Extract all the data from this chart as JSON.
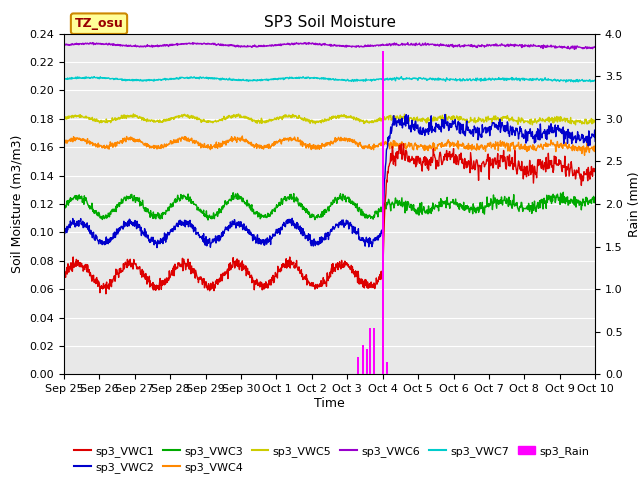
{
  "title": "SP3 Soil Moisture",
  "ylabel_left": "Soil Moisture (m3/m3)",
  "ylabel_right": "Rain (mm)",
  "xlabel": "Time",
  "ylim_left": [
    0.0,
    0.24
  ],
  "ylim_right": [
    0.0,
    4.0
  ],
  "yticks_left": [
    0.0,
    0.02,
    0.04,
    0.06,
    0.08,
    0.1,
    0.12,
    0.14,
    0.16,
    0.18,
    0.2,
    0.22,
    0.24
  ],
  "yticks_right": [
    0.0,
    0.5,
    1.0,
    1.5,
    2.0,
    2.5,
    3.0,
    3.5,
    4.0
  ],
  "background_color": "#e8e8e8",
  "grid_color": "#ffffff",
  "fig_bg": "#ffffff",
  "title_fontsize": 11,
  "label_fontsize": 9,
  "tick_fontsize": 8,
  "legend_fontsize": 8,
  "tz_label": "TZ_osu",
  "tz_bg": "#ffff99",
  "tz_border": "#cc8800",
  "series": {
    "sp3_VWC1": {
      "color": "#dd0000",
      "base": 0.07,
      "amplitude": 0.008,
      "period": 1.5,
      "post_jump": 0.08,
      "post_peak": 0.155,
      "post_end": 0.143,
      "noise": 0.006
    },
    "sp3_VWC2": {
      "color": "#0000cc",
      "base": 0.1,
      "amplitude": 0.007,
      "period": 1.5,
      "post_jump": 0.1,
      "post_peak": 0.177,
      "post_end": 0.168,
      "noise": 0.005
    },
    "sp3_VWC3": {
      "color": "#00aa00",
      "base": 0.118,
      "amplitude": 0.007,
      "period": 1.5,
      "post_jump": 0.118,
      "post_peak": 0.118,
      "post_end": 0.137,
      "noise": 0.004
    },
    "sp3_VWC4": {
      "color": "#ff8800",
      "base": 0.163,
      "amplitude": 0.003,
      "period": 1.5,
      "post_jump": 0.163,
      "post_peak": 0.161,
      "post_end": 0.158,
      "noise": 0.003
    },
    "sp3_VWC5": {
      "color": "#cccc00",
      "base": 0.18,
      "amplitude": 0.002,
      "period": 1.5,
      "post_jump": 0.18,
      "post_peak": 0.18,
      "post_end": 0.174,
      "noise": 0.002
    },
    "sp3_VWC6": {
      "color": "#9900cc",
      "base": 0.232,
      "amplitude": 0.001,
      "period": 3.0,
      "post_jump": 0.232,
      "post_peak": 0.232,
      "post_end": 0.226,
      "noise": 0.001
    },
    "sp3_VWC7": {
      "color": "#00cccc",
      "base": 0.208,
      "amplitude": 0.001,
      "period": 3.0,
      "post_jump": 0.208,
      "post_peak": 0.208,
      "post_end": 0.205,
      "noise": 0.001
    }
  },
  "rain_color": "#ff00ff",
  "rain_bars": [
    {
      "day": 8.3,
      "value": 0.2
    },
    {
      "day": 8.45,
      "value": 0.35
    },
    {
      "day": 8.55,
      "value": 0.3
    },
    {
      "day": 8.65,
      "value": 0.55
    },
    {
      "day": 8.75,
      "value": 0.55
    },
    {
      "day": 9.0,
      "value": 3.8
    },
    {
      "day": 9.12,
      "value": 0.15
    }
  ],
  "total_days": 15,
  "jump_day": 9.0,
  "xtick_positions": [
    0,
    1,
    2,
    3,
    4,
    5,
    6,
    7,
    8,
    9,
    10,
    11,
    12,
    13,
    14,
    15
  ],
  "xtick_labels": [
    "Sep 25",
    "Sep 26",
    "Sep 27",
    "Sep 28",
    "Sep 29",
    "Sep 30",
    "Oct 1",
    "Oct 2",
    "Oct 3",
    "Oct 4",
    "Oct 5",
    "Oct 6",
    "Oct 7",
    "Oct 8",
    "Oct 9",
    "Oct 10"
  ]
}
